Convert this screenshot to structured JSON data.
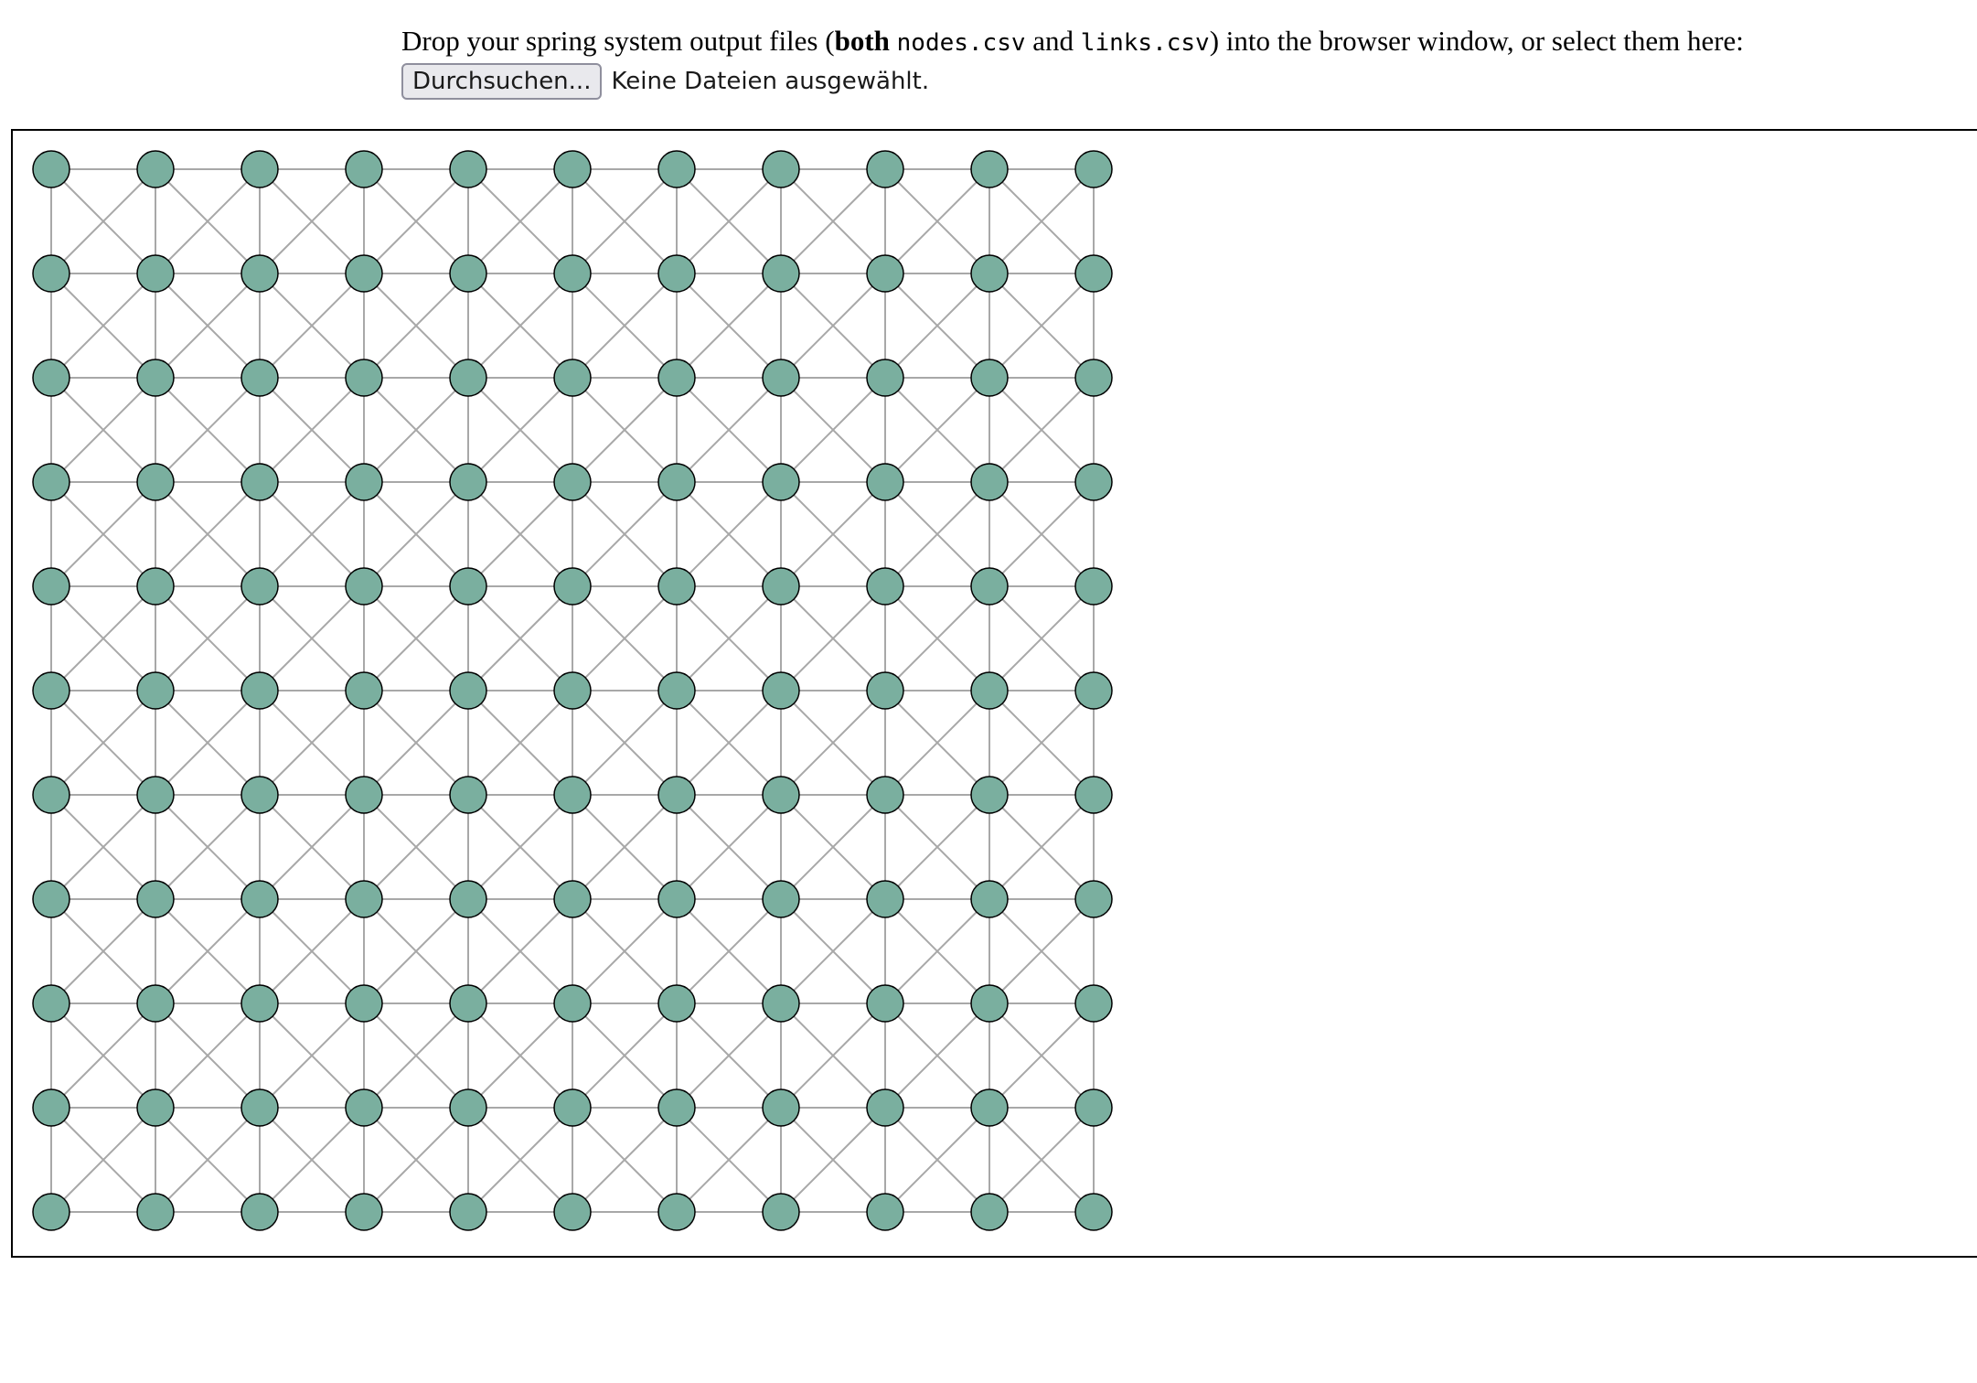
{
  "upload": {
    "text_before": "Drop your spring system output files (",
    "text_bold": "both",
    "file_nodes": "nodes.csv",
    "text_and": "and",
    "file_links": "links.csv",
    "text_after": ") into the browser window, or select them here:",
    "browse_label": "Durchsuchen...",
    "no_files_label": "Keine Dateien ausgewählt."
  },
  "graph": {
    "rows": 11,
    "cols": 11,
    "link_pattern": "grid with horizontal, vertical and both diagonal links",
    "node_fill": "#7aaf9f",
    "node_stroke": "#000000",
    "link_color": "#a8a8a8"
  }
}
